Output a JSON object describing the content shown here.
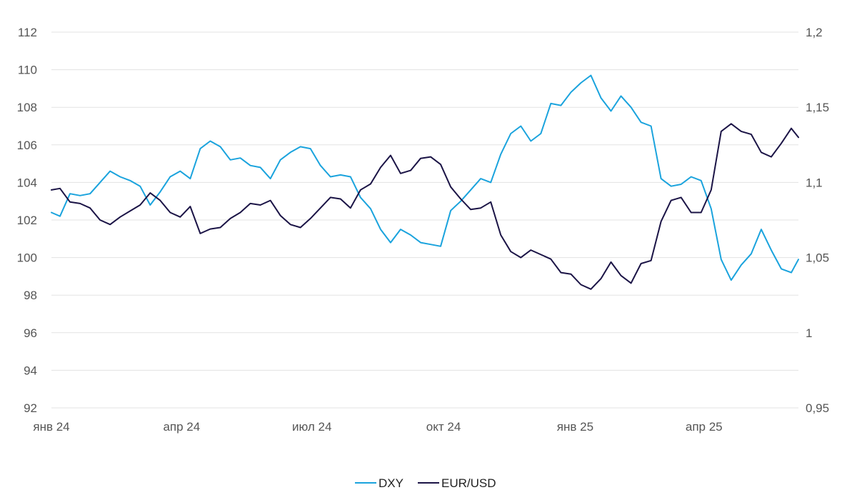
{
  "chart_data": {
    "type": "line",
    "title": "",
    "x_axis": {
      "type": "date",
      "range": [
        "2024-01-01",
        "2025-06-06"
      ],
      "ticks": [
        {
          "date": "2024-01-01",
          "label": "янв 24"
        },
        {
          "date": "2024-04-01",
          "label": "апр 24"
        },
        {
          "date": "2024-07-01",
          "label": "июл 24"
        },
        {
          "date": "2024-10-01",
          "label": "окт 24"
        },
        {
          "date": "2025-01-01",
          "label": "янв 25"
        },
        {
          "date": "2025-04-01",
          "label": "апр 25"
        }
      ]
    },
    "y_left": {
      "range": [
        92,
        112
      ],
      "ticks": [
        "92",
        "94",
        "96",
        "98",
        "100",
        "102",
        "104",
        "106",
        "108",
        "110",
        "112"
      ]
    },
    "y_right": {
      "range": [
        0.95,
        1.2
      ],
      "ticks": [
        "0,95",
        "1",
        "1,05",
        "1,1",
        "1,15",
        "1,2"
      ]
    },
    "grid": true,
    "legend": {
      "position": "bottom-center"
    },
    "series": [
      {
        "name": "DXY",
        "axis": "left",
        "color": "#1aa3dd",
        "points": [
          [
            "2024-01-01",
            102.4
          ],
          [
            "2024-01-07",
            102.2
          ],
          [
            "2024-01-14",
            103.4
          ],
          [
            "2024-01-21",
            103.3
          ],
          [
            "2024-01-28",
            103.4
          ],
          [
            "2024-02-04",
            104.0
          ],
          [
            "2024-02-11",
            104.6
          ],
          [
            "2024-02-18",
            104.3
          ],
          [
            "2024-02-25",
            104.1
          ],
          [
            "2024-03-03",
            103.8
          ],
          [
            "2024-03-10",
            102.8
          ],
          [
            "2024-03-17",
            103.5
          ],
          [
            "2024-03-24",
            104.3
          ],
          [
            "2024-03-31",
            104.6
          ],
          [
            "2024-04-07",
            104.2
          ],
          [
            "2024-04-14",
            105.8
          ],
          [
            "2024-04-21",
            106.2
          ],
          [
            "2024-04-28",
            105.9
          ],
          [
            "2024-05-05",
            105.2
          ],
          [
            "2024-05-12",
            105.3
          ],
          [
            "2024-05-19",
            104.9
          ],
          [
            "2024-05-26",
            104.8
          ],
          [
            "2024-06-02",
            104.2
          ],
          [
            "2024-06-09",
            105.2
          ],
          [
            "2024-06-16",
            105.6
          ],
          [
            "2024-06-23",
            105.9
          ],
          [
            "2024-06-30",
            105.8
          ],
          [
            "2024-07-07",
            104.9
          ],
          [
            "2024-07-14",
            104.3
          ],
          [
            "2024-07-21",
            104.4
          ],
          [
            "2024-07-28",
            104.3
          ],
          [
            "2024-08-04",
            103.2
          ],
          [
            "2024-08-11",
            102.6
          ],
          [
            "2024-08-18",
            101.5
          ],
          [
            "2024-08-25",
            100.8
          ],
          [
            "2024-09-01",
            101.5
          ],
          [
            "2024-09-08",
            101.2
          ],
          [
            "2024-09-15",
            100.8
          ],
          [
            "2024-09-22",
            100.7
          ],
          [
            "2024-09-29",
            100.6
          ],
          [
            "2024-10-06",
            102.5
          ],
          [
            "2024-10-13",
            103.0
          ],
          [
            "2024-10-20",
            103.6
          ],
          [
            "2024-10-27",
            104.2
          ],
          [
            "2024-11-03",
            104.0
          ],
          [
            "2024-11-10",
            105.5
          ],
          [
            "2024-11-17",
            106.6
          ],
          [
            "2024-11-24",
            107.0
          ],
          [
            "2024-12-01",
            106.2
          ],
          [
            "2024-12-08",
            106.6
          ],
          [
            "2024-12-15",
            108.2
          ],
          [
            "2024-12-22",
            108.1
          ],
          [
            "2024-12-29",
            108.8
          ],
          [
            "2025-01-05",
            109.3
          ],
          [
            "2025-01-12",
            109.7
          ],
          [
            "2025-01-19",
            108.5
          ],
          [
            "2025-01-26",
            107.8
          ],
          [
            "2025-02-02",
            108.6
          ],
          [
            "2025-02-09",
            108.0
          ],
          [
            "2025-02-16",
            107.2
          ],
          [
            "2025-02-23",
            107.0
          ],
          [
            "2025-03-02",
            104.2
          ],
          [
            "2025-03-09",
            103.8
          ],
          [
            "2025-03-16",
            103.9
          ],
          [
            "2025-03-23",
            104.3
          ],
          [
            "2025-03-30",
            104.1
          ],
          [
            "2025-04-06",
            102.6
          ],
          [
            "2025-04-13",
            99.9
          ],
          [
            "2025-04-20",
            98.8
          ],
          [
            "2025-04-27",
            99.6
          ],
          [
            "2025-05-04",
            100.2
          ],
          [
            "2025-05-11",
            101.5
          ],
          [
            "2025-05-18",
            100.4
          ],
          [
            "2025-05-25",
            99.4
          ],
          [
            "2025-06-01",
            99.2
          ],
          [
            "2025-06-06",
            99.9
          ]
        ]
      },
      {
        "name": "EUR/USD",
        "axis": "right",
        "color": "#1b1446",
        "points": [
          [
            "2024-01-01",
            1.095
          ],
          [
            "2024-01-07",
            1.096
          ],
          [
            "2024-01-14",
            1.087
          ],
          [
            "2024-01-21",
            1.086
          ],
          [
            "2024-01-28",
            1.083
          ],
          [
            "2024-02-04",
            1.075
          ],
          [
            "2024-02-11",
            1.072
          ],
          [
            "2024-02-18",
            1.077
          ],
          [
            "2024-02-25",
            1.081
          ],
          [
            "2024-03-03",
            1.085
          ],
          [
            "2024-03-10",
            1.093
          ],
          [
            "2024-03-17",
            1.088
          ],
          [
            "2024-03-24",
            1.08
          ],
          [
            "2024-03-31",
            1.077
          ],
          [
            "2024-04-07",
            1.084
          ],
          [
            "2024-04-14",
            1.066
          ],
          [
            "2024-04-21",
            1.069
          ],
          [
            "2024-04-28",
            1.07
          ],
          [
            "2024-05-05",
            1.076
          ],
          [
            "2024-05-12",
            1.08
          ],
          [
            "2024-05-19",
            1.086
          ],
          [
            "2024-05-26",
            1.085
          ],
          [
            "2024-06-02",
            1.088
          ],
          [
            "2024-06-09",
            1.078
          ],
          [
            "2024-06-16",
            1.072
          ],
          [
            "2024-06-23",
            1.07
          ],
          [
            "2024-06-30",
            1.076
          ],
          [
            "2024-07-07",
            1.083
          ],
          [
            "2024-07-14",
            1.09
          ],
          [
            "2024-07-21",
            1.089
          ],
          [
            "2024-07-28",
            1.083
          ],
          [
            "2024-08-04",
            1.095
          ],
          [
            "2024-08-11",
            1.099
          ],
          [
            "2024-08-18",
            1.11
          ],
          [
            "2024-08-25",
            1.118
          ],
          [
            "2024-09-01",
            1.106
          ],
          [
            "2024-09-08",
            1.108
          ],
          [
            "2024-09-15",
            1.116
          ],
          [
            "2024-09-22",
            1.117
          ],
          [
            "2024-09-29",
            1.112
          ],
          [
            "2024-10-06",
            1.097
          ],
          [
            "2024-10-13",
            1.089
          ],
          [
            "2024-10-20",
            1.082
          ],
          [
            "2024-10-27",
            1.083
          ],
          [
            "2024-11-03",
            1.087
          ],
          [
            "2024-11-10",
            1.065
          ],
          [
            "2024-11-17",
            1.054
          ],
          [
            "2024-11-24",
            1.05
          ],
          [
            "2024-12-01",
            1.055
          ],
          [
            "2024-12-08",
            1.052
          ],
          [
            "2024-12-15",
            1.049
          ],
          [
            "2024-12-22",
            1.04
          ],
          [
            "2024-12-29",
            1.039
          ],
          [
            "2025-01-05",
            1.032
          ],
          [
            "2025-01-12",
            1.029
          ],
          [
            "2025-01-19",
            1.036
          ],
          [
            "2025-01-26",
            1.047
          ],
          [
            "2025-02-02",
            1.038
          ],
          [
            "2025-02-09",
            1.033
          ],
          [
            "2025-02-16",
            1.046
          ],
          [
            "2025-02-23",
            1.048
          ],
          [
            "2025-03-02",
            1.074
          ],
          [
            "2025-03-09",
            1.088
          ],
          [
            "2025-03-16",
            1.09
          ],
          [
            "2025-03-23",
            1.08
          ],
          [
            "2025-03-30",
            1.08
          ],
          [
            "2025-04-06",
            1.095
          ],
          [
            "2025-04-13",
            1.134
          ],
          [
            "2025-04-20",
            1.139
          ],
          [
            "2025-04-27",
            1.134
          ],
          [
            "2025-05-04",
            1.132
          ],
          [
            "2025-05-11",
            1.12
          ],
          [
            "2025-05-18",
            1.117
          ],
          [
            "2025-05-25",
            1.126
          ],
          [
            "2025-06-01",
            1.136
          ],
          [
            "2025-06-06",
            1.13
          ]
        ]
      }
    ]
  }
}
